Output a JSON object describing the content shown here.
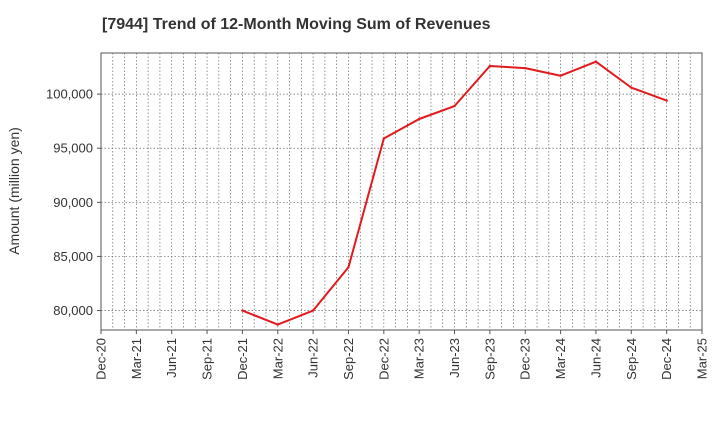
{
  "chart_data": {
    "type": "line",
    "title": "[7944]  Trend of 12-Month Moving Sum of Revenues",
    "xlabel": "",
    "ylabel": "Amount (million yen)",
    "x_ticks": [
      "Dec-20",
      "Mar-21",
      "Jun-21",
      "Sep-21",
      "Dec-21",
      "Mar-22",
      "Jun-22",
      "Sep-22",
      "Dec-22",
      "Mar-23",
      "Jun-23",
      "Sep-23",
      "Dec-23",
      "Mar-24",
      "Jun-24",
      "Sep-24",
      "Dec-24",
      "Mar-25"
    ],
    "y_ticks": [
      "80,000",
      "85,000",
      "90,000",
      "95,000",
      "100,000"
    ],
    "y_tick_values": [
      80000,
      85000,
      90000,
      95000,
      100000
    ],
    "ylim": [
      78200,
      103800
    ],
    "xlim": [
      "Dec-20",
      "Mar-25"
    ],
    "grid": true,
    "series": [
      {
        "color": "#e31a1c",
        "x": [
          "Dec-21",
          "Mar-22",
          "Jun-22",
          "Sep-22",
          "Dec-22",
          "Mar-23",
          "Jun-23",
          "Sep-23",
          "Dec-23",
          "Mar-24",
          "Jun-24",
          "Sep-24",
          "Dec-24"
        ],
        "values": [
          80000,
          78700,
          80000,
          84000,
          95900,
          97700,
          98900,
          102600,
          102400,
          101700,
          103000,
          100600,
          99400
        ]
      }
    ]
  }
}
